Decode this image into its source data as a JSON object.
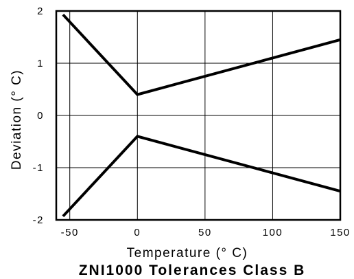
{
  "chart_data": {
    "type": "line",
    "title": "ZNI1000 Tolerances Class B",
    "xlabel": "Temperature (° C)",
    "ylabel": "Deviation (° C)",
    "xlim": [
      -60,
      150
    ],
    "ylim": [
      -2,
      2
    ],
    "xticks": [
      -50,
      0,
      50,
      100,
      150
    ],
    "yticks": [
      -2,
      -1,
      0,
      1,
      2
    ],
    "xtick_labels": [
      "-50",
      "0",
      "50",
      "100",
      "150"
    ],
    "ytick_labels": [
      "-2",
      "-1",
      "0",
      "1",
      "2"
    ],
    "grid": true,
    "series": [
      {
        "x": [
          -55,
          0,
          150
        ],
        "y": [
          1.93,
          0.4,
          1.45
        ]
      },
      {
        "x": [
          -55,
          0,
          150
        ],
        "y": [
          -1.93,
          -0.4,
          -1.45
        ]
      }
    ]
  }
}
